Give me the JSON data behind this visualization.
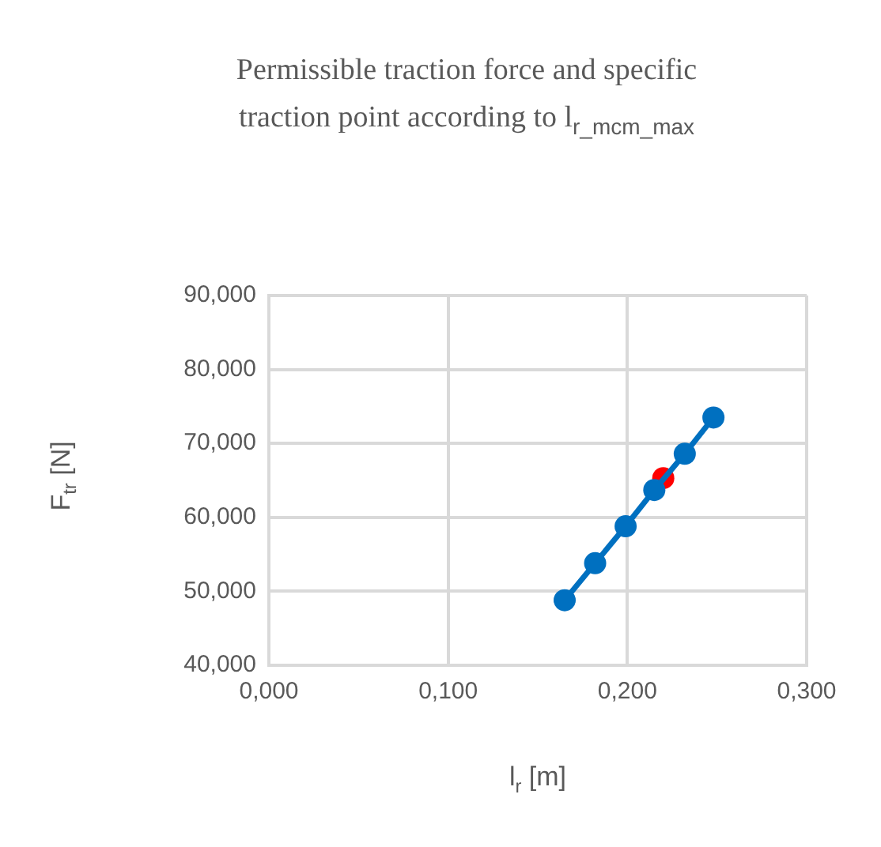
{
  "chart_data": {
    "type": "line",
    "title": "Permissible traction force and specific traction point according to l$_{r_mcm_max}$",
    "xlabel": "l$_{r}$ [m]",
    "ylabel": "F$_{tr}$ [N]",
    "x": [
      0.165,
      0.182,
      0.199,
      0.215,
      0.232,
      0.248
    ],
    "series": [
      {
        "color": "#0070c0",
        "values": [
          48.8,
          53.8,
          58.8,
          63.7,
          68.6,
          73.5
        ]
      },
      {
        "type": "scatter",
        "color": "#ff0000",
        "x": [
          0.22
        ],
        "values": [
          65.3
        ]
      }
    ],
    "xlim": [
      0,
      0.3
    ],
    "xticks": [
      {
        "value": 0,
        "label": "0,000"
      },
      {
        "value": 0.1,
        "label": "0,100"
      },
      {
        "value": 0.2,
        "label": "0,200"
      },
      {
        "value": 0.3,
        "label": "0,300"
      }
    ],
    "ylim": [
      40,
      90
    ],
    "yticks": [
      {
        "value": 40,
        "label": "40,000"
      },
      {
        "value": 50,
        "label": "50,000"
      },
      {
        "value": 60,
        "label": "60,000"
      },
      {
        "value": 70,
        "label": "70,000"
      },
      {
        "value": 80,
        "label": "80,000"
      },
      {
        "value": 90,
        "label": "90,000"
      }
    ],
    "grid": true,
    "marker": "circle",
    "line_style": "solid"
  }
}
